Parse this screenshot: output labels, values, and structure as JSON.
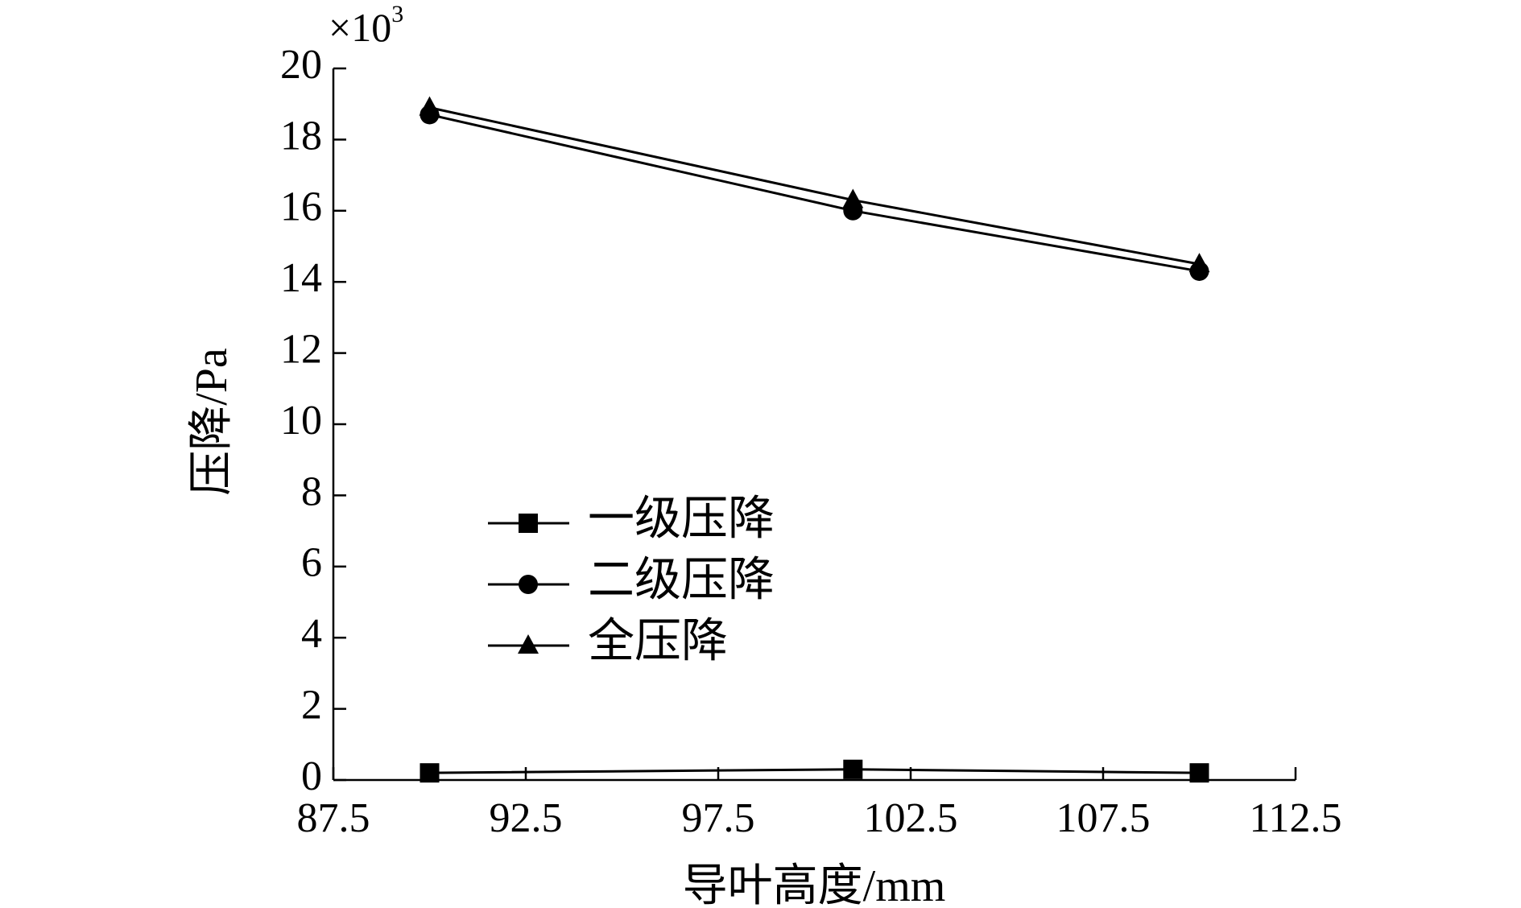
{
  "chart_data": {
    "type": "line",
    "x_label": "导叶高度/mm",
    "y_label": "压降/Pa",
    "y_multiplier": {
      "base": "×10",
      "exponent": "3"
    },
    "x": [
      90,
      101,
      110
    ],
    "series": [
      {
        "name": "一级压降",
        "color": "#000000",
        "marker": "square",
        "values": [
          0.2,
          0.3,
          0.2
        ]
      },
      {
        "name": "二级压降",
        "color": "#000000",
        "marker": "circle",
        "values": [
          18.7,
          16.0,
          14.3
        ]
      },
      {
        "name": "全压降",
        "color": "#000000",
        "marker": "triangle",
        "values": [
          18.9,
          16.3,
          14.5
        ]
      }
    ],
    "xlim": [
      87.5,
      112.5
    ],
    "xticks": [
      87.5,
      92.5,
      97.5,
      102.5,
      107.5,
      112.5
    ],
    "ylim": [
      0,
      20
    ],
    "yticks": [
      0,
      2,
      4,
      6,
      8,
      10,
      12,
      14,
      16,
      18,
      20
    ],
    "grid": false
  }
}
